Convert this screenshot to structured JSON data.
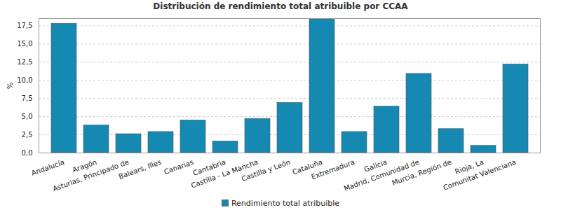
{
  "chart_data": {
    "type": "bar",
    "title": "Distribución de rendimiento total atribuible por CCAA",
    "y_label": "%",
    "categories": [
      "Andalucía",
      "Aragón",
      "Asturias, Principado de",
      "Balears, Illes",
      "Canarias",
      "Cantabria",
      "Castilla - La Mancha",
      "Castilla y León",
      "Cataluña",
      "Extremadura",
      "Galicia",
      "Madrid, Comunidad de",
      "Murcia, Región de",
      "Rioja, La",
      "Comunitat Valenciana"
    ],
    "series": [
      {
        "name": "Rendimiento total atribuible",
        "color": "#1689b3",
        "values": [
          17.8,
          3.8,
          2.6,
          2.9,
          4.5,
          1.6,
          4.7,
          6.9,
          18.4,
          2.9,
          6.4,
          10.9,
          3.3,
          1.0,
          12.2
        ]
      }
    ],
    "ylim": [
      0,
      18.5
    ],
    "yticks": [
      {
        "value": 0,
        "label": "0,0"
      },
      {
        "value": 2.5,
        "label": "2,5"
      },
      {
        "value": 5,
        "label": "5,0"
      },
      {
        "value": 7.5,
        "label": "7,5"
      },
      {
        "value": 10,
        "label": "10,0"
      },
      {
        "value": 12.5,
        "label": "12,5"
      },
      {
        "value": 15,
        "label": "15,0"
      },
      {
        "value": 17.5,
        "label": "17,5"
      }
    ],
    "grid": true,
    "legend": "bottom"
  }
}
